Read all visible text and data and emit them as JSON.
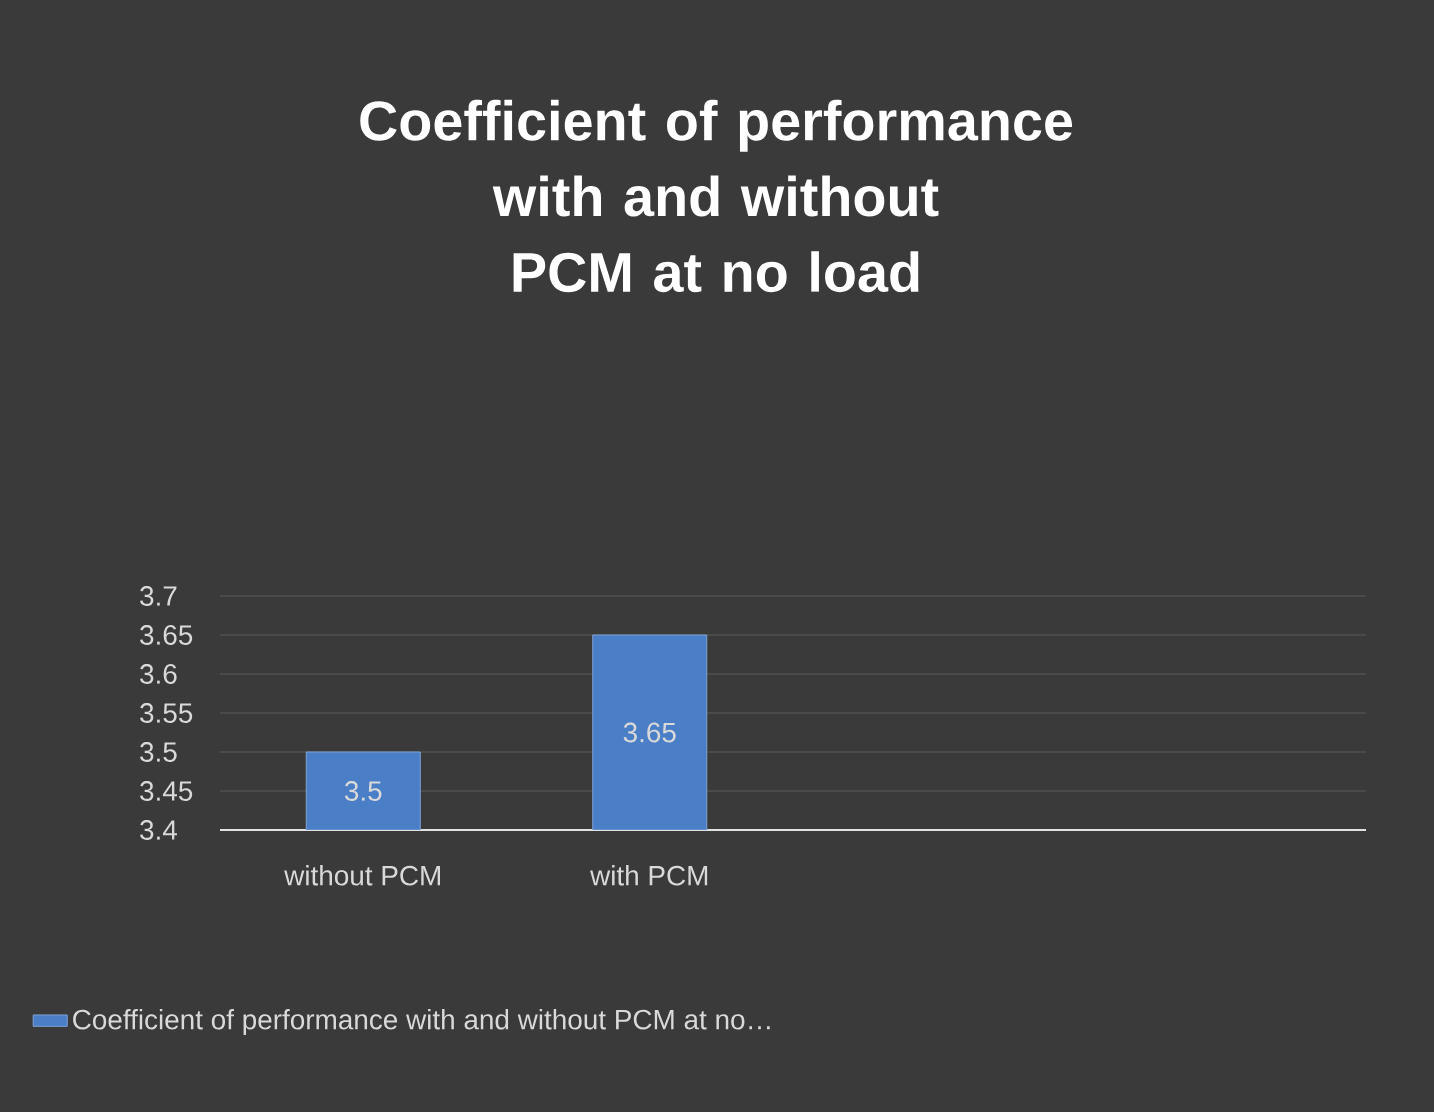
{
  "chart_data": {
    "type": "bar",
    "title": "Coefficient of performance with and without PCM at no load",
    "categories": [
      "without PCM",
      "with PCM",
      null,
      null
    ],
    "series": [
      {
        "name": "Coefficient of performance with and without PCM at no…",
        "color": "#4a7ec6",
        "values": [
          3.5,
          3.65,
          null,
          null
        ]
      }
    ],
    "ylim": [
      3.4,
      3.7
    ],
    "yticks": [
      3.4,
      3.45,
      3.5,
      3.55,
      3.6,
      3.65,
      3.7
    ],
    "grid": "y",
    "legend": "bottom left",
    "data_labels": true
  }
}
